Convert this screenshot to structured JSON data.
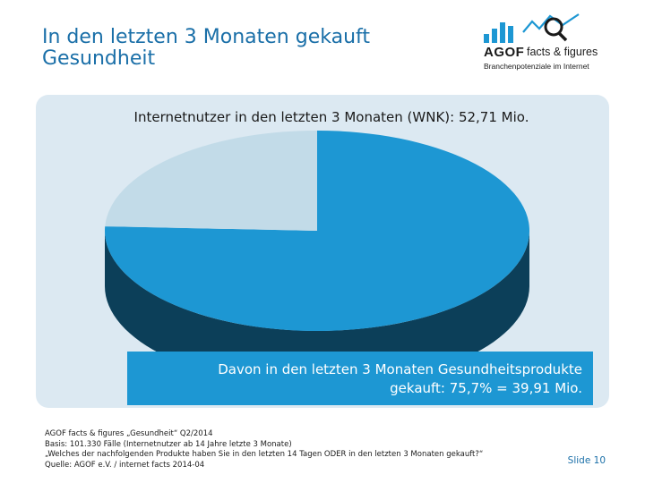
{
  "header": {
    "title_line1": "In den letzten 3 Monaten gekauft",
    "title_line2": "Gesundheit"
  },
  "logo": {
    "brand": "AGOF",
    "product": "facts & figures",
    "tagline": "Branchenpotenziale im Internet",
    "bar_color": "#1d97d3"
  },
  "chart_data": {
    "type": "pie",
    "title": "Internetnutzer in den letzten 3 Monaten (WNK): 52,71 Mio.",
    "style": "3d",
    "slices": [
      {
        "value": 75.7,
        "color": "#1d97d3"
      },
      {
        "value": 24.3,
        "color": "#c2dbe8"
      }
    ],
    "callout": {
      "line1": "Davon in den letzten 3 Monaten Gesundheitsprodukte",
      "line2": "gekauft: 75,7% = 39,91 Mio."
    }
  },
  "footer": {
    "lines": [
      "AGOF facts & figures „Gesundheit“ Q2/2014",
      "Basis: 101.330 Fälle (Internetnutzer ab 14 Jahre letzte 3 Monate)",
      "„Welches der nachfolgenden Produkte haben Sie in den letzten 14 Tagen ODER in den letzten 3 Monaten gekauft?“",
      "Quelle: AGOF e.V. / internet facts 2014-04"
    ],
    "slide_label": "Slide 10"
  }
}
